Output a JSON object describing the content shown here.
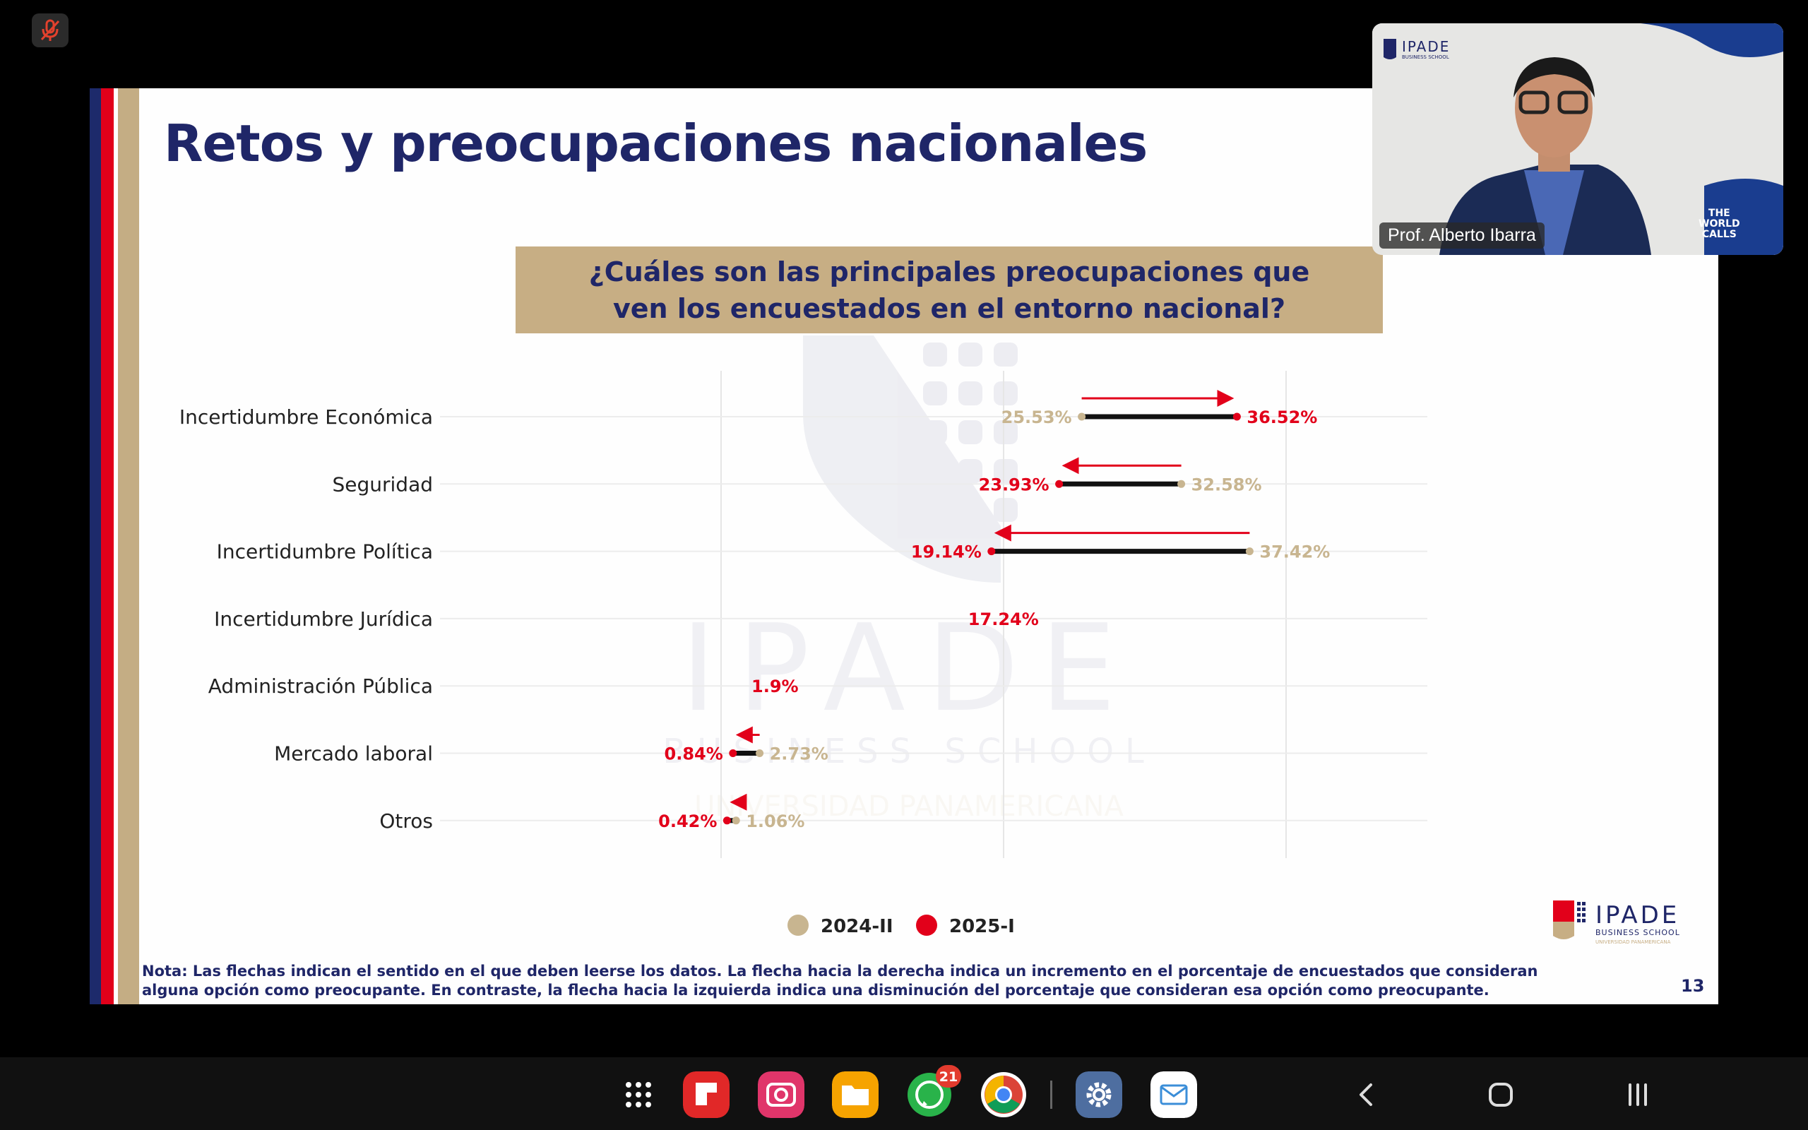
{
  "slide": {
    "title": "Retos y preocupaciones nacionales",
    "question": "¿Cuáles son las principales preocupaciones que ven los encuestados en el entorno nacional?",
    "note": "Nota: Las flechas indican el sentido en el que deben leerse los datos. La flecha hacia la derecha indica un incremento en el porcentaje de encuestados que consideran alguna opción como preocupante. En contraste, la flecha hacia la izquierda indica una disminución del porcentaje que consideran esa opción como preocupante.",
    "page_number": "13",
    "logo": {
      "name": "IPADE",
      "sub1": "BUSINESS SCHOOL",
      "sub2": "UNIVERSIDAD PANAMERICANA"
    },
    "watermark": {
      "name": "IPADE",
      "sub1": "BUSINESS SCHOOL",
      "sub2": "UNIVERSIDAD PANAMERICANA"
    }
  },
  "chart_data": {
    "type": "dumbbell",
    "categories": [
      "Incertidumbre Económica",
      "Seguridad",
      "Incertidumbre Política",
      "Incertidumbre Jurídica",
      "Administración Pública",
      "Mercado laboral",
      "Otros"
    ],
    "series": [
      {
        "name": "2024-II",
        "values": [
          25.53,
          32.58,
          37.42,
          null,
          null,
          2.73,
          1.06
        ],
        "labels": [
          "25.53%",
          "32.58%",
          "37.42%",
          null,
          null,
          "2.73%",
          "1.06%"
        ],
        "color": "#c8b590"
      },
      {
        "name": "2025-I",
        "values": [
          36.52,
          23.93,
          19.14,
          17.24,
          1.9,
          0.84,
          0.42
        ],
        "labels": [
          "36.52%",
          "23.93%",
          "19.14%",
          "17.24%",
          "1.9%",
          "0.84%",
          "0.42%"
        ],
        "color": "#e2001a"
      }
    ],
    "legend_position": "bottom"
  },
  "webcam": {
    "presenter": "Prof. Alberto Ibarra",
    "logo_text": "IPADE",
    "logo_sub": "BUSINESS SCHOOL",
    "corner_text": [
      "THE",
      "WORLD",
      "CALLS"
    ]
  },
  "taskbar": {
    "whatsapp_badge": "21",
    "apps": [
      "app-drawer",
      "flipboard",
      "camera",
      "files",
      "whatsapp",
      "chrome",
      "settings",
      "email"
    ]
  },
  "colors": {
    "navy": "#1f2668",
    "red": "#e2001a",
    "gold": "#c7ae84"
  }
}
